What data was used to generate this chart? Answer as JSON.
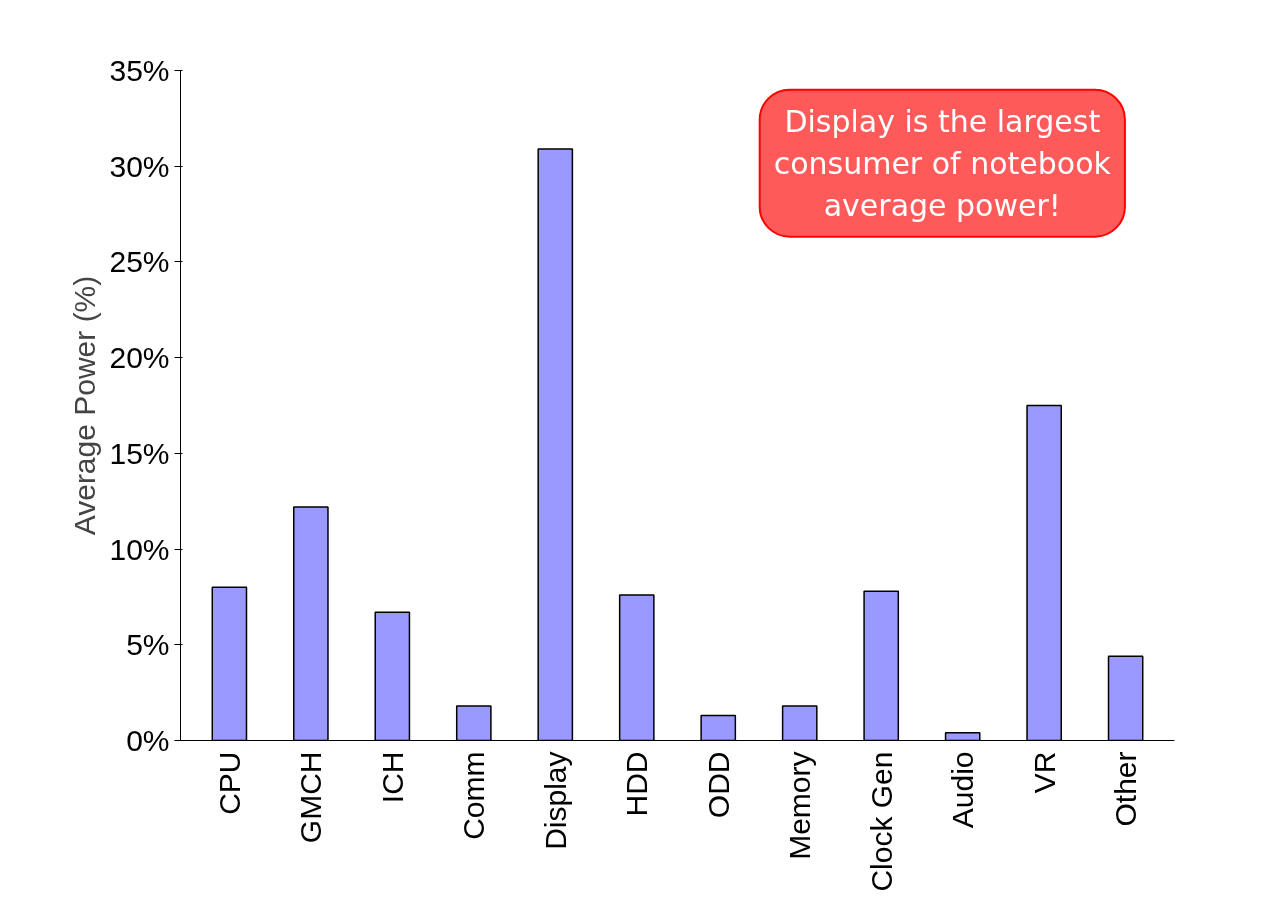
{
  "chart_data": {
    "type": "bar",
    "ylabel": "Average Power (%)",
    "categories": [
      "CPU",
      "GMCH",
      "ICH",
      "Comm",
      "Display",
      "HDD",
      "ODD",
      "Memory",
      "Clock Gen",
      "Audio",
      "VR",
      "Other"
    ],
    "values": [
      8.0,
      12.2,
      6.7,
      1.8,
      30.9,
      7.6,
      1.3,
      1.8,
      7.8,
      0.4,
      17.5,
      4.4
    ],
    "color": "#9999ff",
    "ylim": [
      0,
      35
    ],
    "yticks": [
      {
        "value": 0,
        "label": "0%"
      },
      {
        "value": 5,
        "label": "5%"
      },
      {
        "value": 10,
        "label": "10%"
      },
      {
        "value": 15,
        "label": "15%"
      },
      {
        "value": 20,
        "label": "20%"
      },
      {
        "value": 25,
        "label": "25%"
      },
      {
        "value": 30,
        "label": "30%"
      },
      {
        "value": 35,
        "label": "35%"
      }
    ],
    "grid": false,
    "annotations": [
      "Display is the largest consumer of notebook average power!"
    ]
  }
}
